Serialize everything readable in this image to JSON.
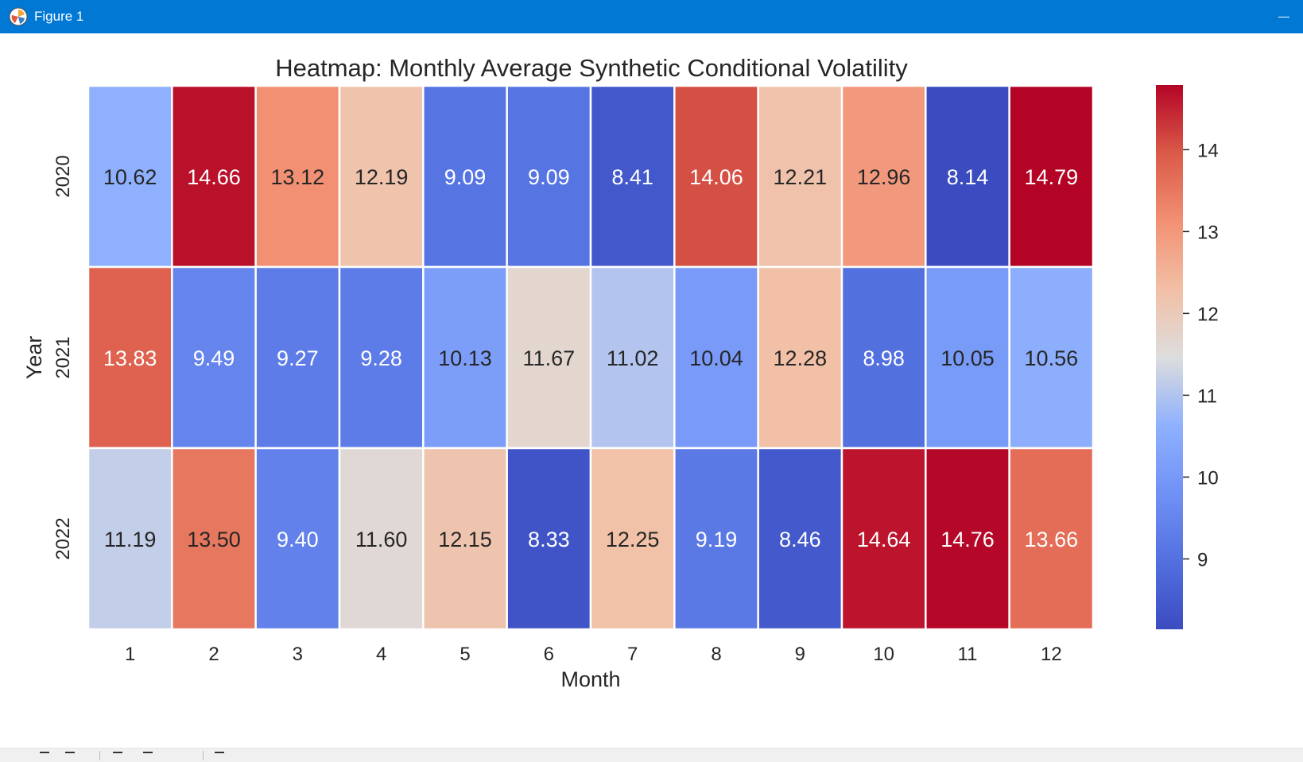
{
  "window": {
    "title": "Figure 1"
  },
  "chart_data": {
    "type": "heatmap",
    "title": "Heatmap: Monthly Average Synthetic Conditional Volatility",
    "xlabel": "Month",
    "ylabel": "Year",
    "x": [
      "1",
      "2",
      "3",
      "4",
      "5",
      "6",
      "7",
      "8",
      "9",
      "10",
      "11",
      "12"
    ],
    "y": [
      "2020",
      "2021",
      "2022"
    ],
    "values": [
      [
        10.62,
        14.66,
        13.12,
        12.19,
        9.09,
        9.09,
        8.41,
        14.06,
        12.21,
        12.96,
        8.14,
        14.79
      ],
      [
        13.83,
        9.49,
        9.27,
        9.28,
        10.13,
        11.67,
        11.02,
        10.04,
        12.28,
        8.98,
        10.05,
        10.56
      ],
      [
        11.19,
        13.5,
        9.4,
        11.6,
        12.15,
        8.33,
        12.25,
        9.19,
        8.46,
        14.64,
        14.76,
        13.66
      ]
    ],
    "colormap": "coolwarm",
    "colorbar": {
      "min": 8.14,
      "max": 14.79,
      "ticks": [
        9,
        10,
        11,
        12,
        13,
        14
      ]
    },
    "annotations": "values shown with 2 decimals"
  }
}
